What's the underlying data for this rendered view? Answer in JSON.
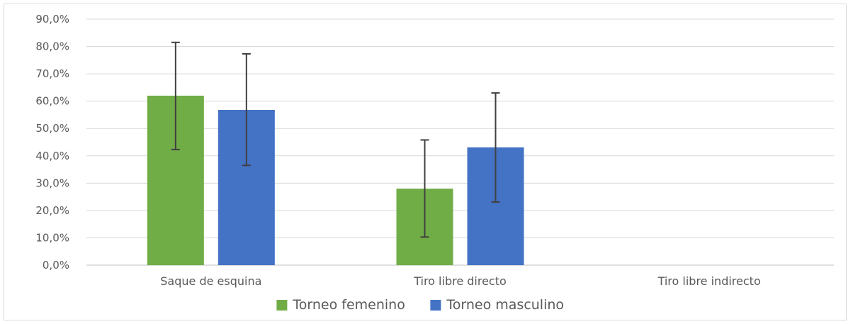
{
  "chart_data": {
    "type": "bar",
    "categories": [
      "Saque de esquina",
      "Tiro libre directo",
      "Tiro libre indirecto"
    ],
    "series": [
      {
        "name": "Torneo femenino",
        "color": "#70ad47",
        "values": [
          62.0,
          28.0,
          null
        ],
        "error_low": [
          42.3,
          10.3,
          null
        ],
        "error_high": [
          81.5,
          45.8,
          null
        ]
      },
      {
        "name": "Torneo masculino",
        "color": "#4472c4",
        "values": [
          56.8,
          43.1,
          null
        ],
        "error_low": [
          36.5,
          23.1,
          null
        ],
        "error_high": [
          77.3,
          63.0,
          null
        ]
      }
    ],
    "ylim": [
      0,
      90
    ],
    "yticks": [
      "0,0%",
      "10,0%",
      "20,0%",
      "30,0%",
      "40,0%",
      "50,0%",
      "60,0%",
      "70,0%",
      "80,0%",
      "90,0%"
    ],
    "title": "",
    "xlabel": "",
    "ylabel": "",
    "grid": true,
    "legend_position": "bottom",
    "gridline_color": "#d9d9d9",
    "error_bar_color": "#404040"
  }
}
